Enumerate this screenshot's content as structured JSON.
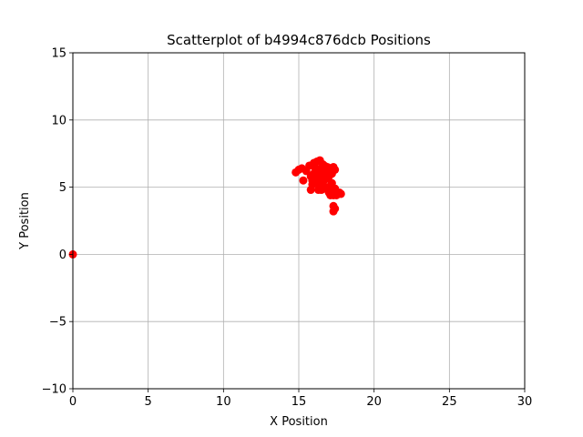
{
  "chart_data": {
    "type": "scatter",
    "title": "Scatterplot of b4994c876dcb Positions",
    "xlabel": "X Position",
    "ylabel": "Y Position",
    "xlim": [
      0,
      30
    ],
    "ylim": [
      -10,
      15
    ],
    "xticks": [
      0,
      5,
      10,
      15,
      20,
      25,
      30
    ],
    "yticks": [
      -10,
      -5,
      0,
      5,
      10,
      15
    ],
    "ytick_labels": [
      "−10",
      "−5",
      "0",
      "5",
      "10",
      "15"
    ],
    "grid": true,
    "marker_color": "#ff0000",
    "series": [
      {
        "x": [
          0.0,
          14.8,
          15.0,
          15.2,
          15.3,
          15.5,
          15.7,
          15.8,
          15.9,
          16.0,
          16.0,
          16.1,
          16.1,
          16.2,
          16.2,
          16.3,
          16.3,
          16.4,
          16.4,
          16.5,
          16.5,
          16.5,
          16.6,
          16.6,
          16.7,
          16.7,
          16.8,
          16.8,
          16.9,
          16.9,
          17.0,
          17.0,
          17.1,
          17.1,
          17.2,
          17.2,
          17.3,
          17.3,
          17.4,
          17.4,
          17.5,
          17.6,
          17.7,
          17.8,
          15.8,
          16.0,
          16.4,
          16.6,
          17.2,
          17.3,
          17.4,
          17.3,
          16.1,
          16.9,
          15.9,
          16.3
        ],
        "y": [
          0.0,
          6.1,
          6.3,
          6.4,
          5.5,
          6.2,
          6.6,
          4.8,
          5.5,
          6.0,
          6.8,
          5.3,
          6.4,
          5.8,
          6.9,
          5.4,
          6.1,
          7.0,
          5.0,
          5.7,
          6.4,
          4.8,
          6.0,
          5.2,
          6.6,
          4.9,
          5.6,
          6.2,
          5.0,
          6.5,
          4.6,
          5.8,
          4.4,
          6.1,
          5.3,
          4.7,
          6.5,
          4.4,
          4.9,
          6.3,
          4.4,
          4.5,
          4.6,
          4.5,
          5.8,
          5.5,
          5.3,
          6.7,
          6.0,
          3.6,
          3.4,
          3.2,
          6.2,
          5.9,
          5.2,
          4.8
        ]
      }
    ]
  }
}
